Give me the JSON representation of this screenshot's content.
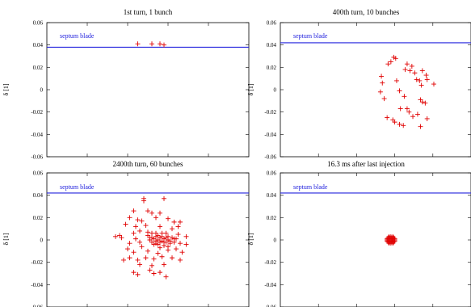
{
  "colors": {
    "points": "#e00000",
    "blade": "#2222dd",
    "axis": "#000000"
  },
  "chart_data": [
    {
      "type": "scatter",
      "title": "1st turn, 1 bunch",
      "ylabel": "δ [1]",
      "ylim": [
        -0.06,
        0.06
      ],
      "yticks": [
        "0.06",
        "0.04",
        "0.02",
        "0",
        "-0.02",
        "-0.04",
        "-0.06"
      ],
      "xlim": [
        0,
        1
      ],
      "blade_label": "septum blade",
      "blade_y": 0.038,
      "points": [
        [
          0.45,
          0.041
        ],
        [
          0.52,
          0.041
        ],
        [
          0.56,
          0.041
        ],
        [
          0.58,
          0.04
        ]
      ]
    },
    {
      "type": "scatter",
      "title": "400th turn, 10 bunches",
      "ylabel": "δ [1]",
      "ylim": [
        -0.06,
        0.06
      ],
      "yticks": [
        "0.06",
        "0.04",
        "0.02",
        "0",
        "-0.02",
        "-0.04",
        "-0.06"
      ],
      "xlim": [
        0,
        1
      ],
      "blade_label": "septum blade",
      "blade_y": 0.042,
      "points": [
        [
          0.595,
          0.029
        ],
        [
          0.605,
          0.028
        ],
        [
          0.58,
          0.025
        ],
        [
          0.565,
          0.023
        ],
        [
          0.665,
          0.023
        ],
        [
          0.69,
          0.021
        ],
        [
          0.68,
          0.017
        ],
        [
          0.705,
          0.015
        ],
        [
          0.655,
          0.018
        ],
        [
          0.745,
          0.017
        ],
        [
          0.765,
          0.013
        ],
        [
          0.715,
          0.009
        ],
        [
          0.73,
          0.008
        ],
        [
          0.77,
          0.009
        ],
        [
          0.805,
          0.005
        ],
        [
          0.74,
          0.004
        ],
        [
          0.53,
          0.012
        ],
        [
          0.535,
          0.006
        ],
        [
          0.525,
          -0.002
        ],
        [
          0.545,
          -0.008
        ],
        [
          0.61,
          0.008
        ],
        [
          0.625,
          -0.001
        ],
        [
          0.65,
          -0.006
        ],
        [
          0.665,
          -0.017
        ],
        [
          0.63,
          -0.017
        ],
        [
          0.735,
          -0.009
        ],
        [
          0.745,
          -0.011
        ],
        [
          0.76,
          -0.012
        ],
        [
          0.675,
          -0.02
        ],
        [
          0.695,
          -0.024
        ],
        [
          0.72,
          -0.022
        ],
        [
          0.56,
          -0.025
        ],
        [
          0.59,
          -0.027
        ],
        [
          0.6,
          -0.029
        ],
        [
          0.625,
          -0.031
        ],
        [
          0.645,
          -0.032
        ],
        [
          0.77,
          -0.026
        ],
        [
          0.735,
          -0.033
        ]
      ]
    },
    {
      "type": "scatter",
      "title": "2400th turn, 60 bunches",
      "ylabel": "δ [1]",
      "ylim": [
        -0.06,
        0.06
      ],
      "yticks": [
        "0.06",
        "0.04",
        "0.02",
        "0",
        "-0.02",
        "-0.04",
        "-0.06"
      ],
      "xlim": [
        0,
        1
      ],
      "blade_label": "septum blade",
      "blade_y": 0.042,
      "points": [
        [
          0.48,
          0.037
        ],
        [
          0.48,
          0.035
        ],
        [
          0.58,
          0.037
        ],
        [
          0.43,
          0.026
        ],
        [
          0.5,
          0.026
        ],
        [
          0.56,
          0.024
        ],
        [
          0.52,
          0.024
        ],
        [
          0.41,
          0.02
        ],
        [
          0.45,
          0.018
        ],
        [
          0.47,
          0.017
        ],
        [
          0.54,
          0.02
        ],
        [
          0.6,
          0.019
        ],
        [
          0.63,
          0.016
        ],
        [
          0.66,
          0.016
        ],
        [
          0.39,
          0.014
        ],
        [
          0.44,
          0.012
        ],
        [
          0.49,
          0.013
        ],
        [
          0.56,
          0.012
        ],
        [
          0.62,
          0.01
        ],
        [
          0.65,
          0.012
        ],
        [
          0.36,
          0.004
        ],
        [
          0.37,
          0.002
        ],
        [
          0.34,
          0.003
        ],
        [
          0.43,
          0.006
        ],
        [
          0.46,
          0.008
        ],
        [
          0.5,
          0.007
        ],
        [
          0.59,
          0.006
        ],
        [
          0.65,
          0.005
        ],
        [
          0.69,
          0.003
        ],
        [
          0.41,
          -0.003
        ],
        [
          0.44,
          0.001
        ],
        [
          0.46,
          -0.002
        ],
        [
          0.52,
          0.002
        ],
        [
          0.54,
          -0.003
        ],
        [
          0.58,
          -0.002
        ],
        [
          0.61,
          -0.001
        ],
        [
          0.63,
          0.001
        ],
        [
          0.66,
          -0.003
        ],
        [
          0.69,
          -0.004
        ],
        [
          0.4,
          -0.008
        ],
        [
          0.43,
          -0.011
        ],
        [
          0.47,
          -0.006
        ],
        [
          0.5,
          -0.01
        ],
        [
          0.55,
          -0.012
        ],
        [
          0.6,
          -0.009
        ],
        [
          0.64,
          -0.008
        ],
        [
          0.67,
          -0.011
        ],
        [
          0.38,
          -0.018
        ],
        [
          0.41,
          -0.016
        ],
        [
          0.45,
          -0.018
        ],
        [
          0.49,
          -0.016
        ],
        [
          0.53,
          -0.017
        ],
        [
          0.57,
          -0.015
        ],
        [
          0.62,
          -0.016
        ],
        [
          0.66,
          -0.018
        ],
        [
          0.46,
          -0.022
        ],
        [
          0.52,
          -0.023
        ],
        [
          0.58,
          -0.022
        ],
        [
          0.43,
          -0.029
        ],
        [
          0.45,
          -0.031
        ],
        [
          0.51,
          -0.027
        ],
        [
          0.53,
          -0.03
        ],
        [
          0.56,
          -0.029
        ],
        [
          0.59,
          -0.033
        ],
        [
          0.5,
          0.004
        ],
        [
          0.51,
          0.002
        ],
        [
          0.51,
          0.0
        ],
        [
          0.52,
          -0.002
        ],
        [
          0.52,
          0.006
        ],
        [
          0.53,
          0.001
        ],
        [
          0.53,
          -0.004
        ],
        [
          0.54,
          0.003
        ],
        [
          0.54,
          -0.001
        ],
        [
          0.55,
          0.004
        ],
        [
          0.55,
          0.0
        ],
        [
          0.55,
          -0.004
        ],
        [
          0.56,
          0.002
        ],
        [
          0.56,
          -0.002
        ],
        [
          0.57,
          0.003
        ],
        [
          0.57,
          -0.001
        ],
        [
          0.58,
          0.001
        ],
        [
          0.58,
          -0.005
        ],
        [
          0.59,
          0.002
        ],
        [
          0.59,
          -0.002
        ],
        [
          0.6,
          0.003
        ],
        [
          0.6,
          0.0
        ],
        [
          0.61,
          -0.003
        ],
        [
          0.62,
          0.002
        ],
        [
          0.63,
          -0.002
        ],
        [
          0.64,
          0.001
        ],
        [
          0.54,
          0.006
        ],
        [
          0.57,
          0.006
        ],
        [
          0.6,
          -0.006
        ],
        [
          0.56,
          -0.007
        ]
      ]
    },
    {
      "type": "scatter",
      "title": "16.3 ms after last injection",
      "ylabel": "δ [1]",
      "ylim": [
        -0.06,
        0.06
      ],
      "yticks": [
        "0.06",
        "0.04",
        "0.02",
        "0",
        "-0.02",
        "-0.04",
        "-0.06"
      ],
      "xlim": [
        0,
        1
      ],
      "blade_label": "septum blade",
      "blade_y": 0.042,
      "points": [
        [
          0.57,
          0.003
        ],
        [
          0.58,
          0.003
        ],
        [
          0.59,
          0.003
        ],
        [
          0.565,
          0.002
        ],
        [
          0.575,
          0.002
        ],
        [
          0.585,
          0.002
        ],
        [
          0.595,
          0.002
        ],
        [
          0.56,
          0.001
        ],
        [
          0.57,
          0.001
        ],
        [
          0.58,
          0.001
        ],
        [
          0.59,
          0.001
        ],
        [
          0.6,
          0.001
        ],
        [
          0.56,
          0.0
        ],
        [
          0.57,
          0.0
        ],
        [
          0.58,
          0.0
        ],
        [
          0.59,
          0.0
        ],
        [
          0.6,
          0.0
        ],
        [
          0.56,
          -0.001
        ],
        [
          0.57,
          -0.001
        ],
        [
          0.58,
          -0.001
        ],
        [
          0.59,
          -0.001
        ],
        [
          0.6,
          -0.001
        ],
        [
          0.565,
          -0.002
        ],
        [
          0.575,
          -0.002
        ],
        [
          0.585,
          -0.002
        ],
        [
          0.595,
          -0.002
        ],
        [
          0.57,
          -0.003
        ],
        [
          0.58,
          -0.003
        ],
        [
          0.59,
          -0.003
        ]
      ]
    }
  ]
}
